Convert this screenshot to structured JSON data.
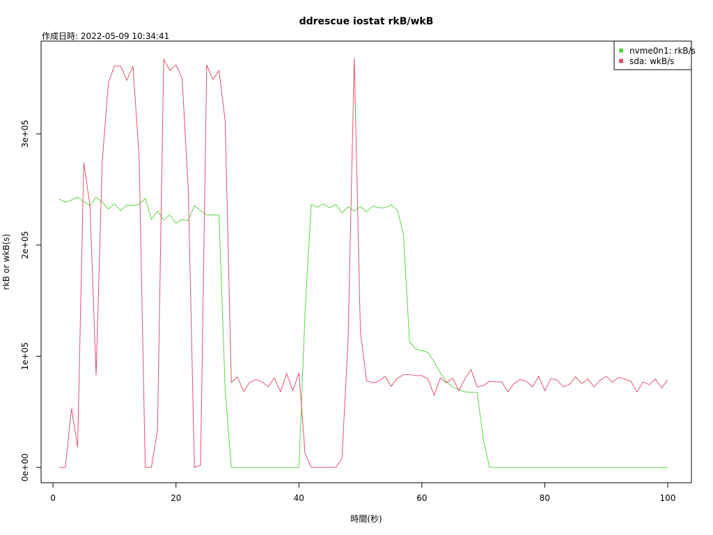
{
  "chart_data": {
    "type": "line",
    "title": "ddrescue iostat rkB/wkB",
    "subtitle": "作成日時: 2022-05-09 10:34:41",
    "xlabel": "時間(秒)",
    "ylabel": "rkB or wkB(s)",
    "xlim": [
      1,
      100
    ],
    "ylim": [
      0,
      369000
    ],
    "x_ticks": [
      0,
      20,
      40,
      60,
      80,
      100
    ],
    "x_tick_labels": [
      "0",
      "20",
      "40",
      "60",
      "80",
      "100"
    ],
    "y_ticks": [
      0,
      100000,
      200000,
      300000
    ],
    "y_tick_labels": [
      "0e+00",
      "1e+05",
      "2e+05",
      "3e+05"
    ],
    "grid": false,
    "legend_position": "top-right",
    "x": [
      1,
      2,
      3,
      4,
      5,
      6,
      7,
      8,
      9,
      10,
      11,
      12,
      13,
      14,
      15,
      16,
      17,
      18,
      19,
      20,
      21,
      22,
      23,
      24,
      25,
      26,
      27,
      28,
      29,
      30,
      31,
      32,
      33,
      34,
      35,
      36,
      37,
      38,
      39,
      40,
      41,
      42,
      43,
      44,
      45,
      46,
      47,
      48,
      49,
      50,
      51,
      52,
      53,
      54,
      55,
      56,
      57,
      58,
      59,
      60,
      61,
      62,
      63,
      64,
      65,
      66,
      67,
      68,
      69,
      70,
      71,
      72,
      73,
      74,
      75,
      76,
      77,
      78,
      79,
      80,
      81,
      82,
      83,
      84,
      85,
      86,
      87,
      88,
      89,
      90,
      91,
      92,
      93,
      94,
      95,
      96,
      97,
      98,
      99,
      100
    ],
    "series": [
      {
        "name": "nvme0n1: rkB/s",
        "color": "#61d04f",
        "values": [
          241500,
          238500,
          240500,
          243000,
          239000,
          235500,
          243000,
          238500,
          232500,
          237000,
          231000,
          236000,
          235500,
          236500,
          242000,
          223000,
          230500,
          222500,
          227000,
          219500,
          223000,
          222000,
          235500,
          231000,
          227000,
          227000,
          227000,
          70000,
          0,
          0,
          0,
          0,
          0,
          0,
          0,
          0,
          0,
          0,
          0,
          0,
          140000,
          236500,
          234000,
          237000,
          233500,
          236500,
          229000,
          234500,
          230500,
          234500,
          230000,
          235000,
          233500,
          233500,
          236000,
          231500,
          210000,
          113000,
          106500,
          105000,
          103500,
          95000,
          85000,
          77000,
          72500,
          70000,
          68000,
          67500,
          67500,
          25000,
          0,
          0,
          0,
          0,
          0,
          0,
          0,
          0,
          0,
          0,
          0,
          0,
          0,
          0,
          0,
          0,
          0,
          0,
          0,
          0,
          0,
          0,
          0,
          0,
          0,
          0,
          0,
          0,
          0,
          0
        ]
      },
      {
        "name": "sda: wkB/s",
        "color": "#df536b",
        "values": [
          0,
          0,
          53000,
          18000,
          274000,
          236000,
          83000,
          275000,
          346000,
          361000,
          361000,
          348000,
          361000,
          280000,
          0,
          0,
          34000,
          367000,
          357000,
          362000,
          350000,
          250000,
          0,
          2000,
          362000,
          349000,
          357000,
          312000,
          76500,
          81500,
          68500,
          76500,
          79000,
          77000,
          72500,
          80500,
          68000,
          84500,
          69000,
          85000,
          12500,
          0,
          0,
          0,
          0,
          0,
          8000,
          115000,
          368000,
          122000,
          78000,
          76000,
          77500,
          82000,
          73000,
          80000,
          83500,
          83500,
          82500,
          82500,
          79500,
          65000,
          80500,
          76000,
          80500,
          69000,
          79500,
          88000,
          72500,
          73500,
          77500,
          77000,
          77000,
          68000,
          75500,
          79000,
          77500,
          72500,
          82000,
          69000,
          80000,
          78500,
          72500,
          74500,
          81500,
          75500,
          79500,
          72500,
          78500,
          82000,
          76500,
          81000,
          79500,
          77500,
          68000,
          77000,
          74500,
          79500,
          71500,
          78500
        ]
      }
    ]
  }
}
